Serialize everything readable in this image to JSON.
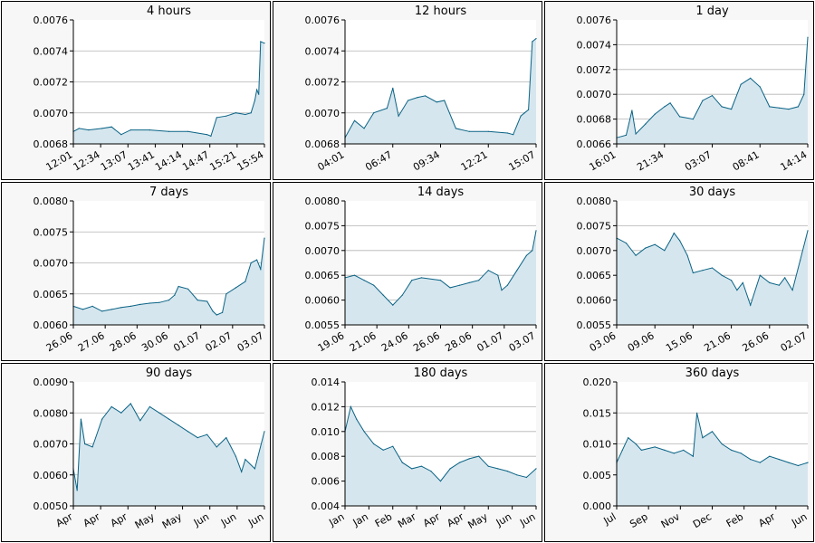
{
  "colors": {
    "line": "#0a6385",
    "fill": "#d6e6ee",
    "grid": "#b3b3b3",
    "axis": "#000000",
    "plot_bg": "#ffffff",
    "panel_bg": "#f7f7f7"
  },
  "chart_data": [
    {
      "type": "area",
      "title": "4 hours",
      "ylim": [
        0.0068,
        0.0076
      ],
      "yticks": [
        "0.0068",
        "0.0070",
        "0.0072",
        "0.0074",
        "0.0076"
      ],
      "xticks": [
        "12:01",
        "12:34",
        "13:07",
        "13:41",
        "14:14",
        "14:47",
        "15:21",
        "15:54"
      ],
      "x": [
        0,
        0.03,
        0.08,
        0.15,
        0.2,
        0.25,
        0.3,
        0.4,
        0.5,
        0.6,
        0.7,
        0.72,
        0.75,
        0.8,
        0.85,
        0.9,
        0.93,
        0.95,
        0.96,
        0.97,
        0.98,
        1
      ],
      "y": [
        0.00688,
        0.0069,
        0.00689,
        0.0069,
        0.00691,
        0.00686,
        0.00689,
        0.00689,
        0.00688,
        0.00688,
        0.00686,
        0.00685,
        0.00697,
        0.00698,
        0.007,
        0.00699,
        0.007,
        0.00708,
        0.00715,
        0.00712,
        0.00746,
        0.00745
      ]
    },
    {
      "type": "area",
      "title": "12 hours",
      "ylim": [
        0.0068,
        0.0076
      ],
      "yticks": [
        "0.0068",
        "0.0070",
        "0.0072",
        "0.0074",
        "0.0076"
      ],
      "xticks": [
        "04:01",
        "06:47",
        "09:34",
        "12:21",
        "15:07"
      ],
      "x": [
        0,
        0.05,
        0.1,
        0.15,
        0.22,
        0.25,
        0.28,
        0.33,
        0.38,
        0.42,
        0.48,
        0.52,
        0.58,
        0.65,
        0.75,
        0.85,
        0.88,
        0.92,
        0.94,
        0.96,
        0.98,
        1
      ],
      "y": [
        0.00684,
        0.00695,
        0.0069,
        0.007,
        0.00703,
        0.00716,
        0.00698,
        0.00708,
        0.0071,
        0.00711,
        0.00707,
        0.00708,
        0.0069,
        0.00688,
        0.00688,
        0.00687,
        0.00686,
        0.00698,
        0.007,
        0.00702,
        0.00746,
        0.00748
      ]
    },
    {
      "type": "area",
      "title": "1 day",
      "ylim": [
        0.0066,
        0.0076
      ],
      "yticks": [
        "0.0066",
        "0.0068",
        "0.0070",
        "0.0072",
        "0.0074",
        "0.0076"
      ],
      "xticks": [
        "16:01",
        "21:34",
        "03:07",
        "08:41",
        "14:14"
      ],
      "x": [
        0,
        0.05,
        0.08,
        0.1,
        0.15,
        0.2,
        0.25,
        0.28,
        0.33,
        0.4,
        0.45,
        0.5,
        0.55,
        0.6,
        0.65,
        0.7,
        0.75,
        0.8,
        0.85,
        0.9,
        0.95,
        0.98,
        1
      ],
      "y": [
        0.00665,
        0.00667,
        0.00687,
        0.00668,
        0.00676,
        0.00684,
        0.0069,
        0.00693,
        0.00682,
        0.0068,
        0.00695,
        0.00699,
        0.0069,
        0.00688,
        0.00708,
        0.00713,
        0.00706,
        0.0069,
        0.00689,
        0.00688,
        0.0069,
        0.007,
        0.00746
      ]
    },
    {
      "type": "area",
      "title": "7 days",
      "ylim": [
        0.006,
        0.008
      ],
      "yticks": [
        "0.0060",
        "0.0065",
        "0.0070",
        "0.0075",
        "0.0080"
      ],
      "xticks": [
        "26.06",
        "27.06",
        "28.06",
        "30.06",
        "01.07",
        "02.07",
        "03.07"
      ],
      "x": [
        0,
        0.05,
        0.1,
        0.15,
        0.2,
        0.25,
        0.3,
        0.35,
        0.4,
        0.45,
        0.5,
        0.53,
        0.55,
        0.6,
        0.65,
        0.7,
        0.73,
        0.75,
        0.78,
        0.8,
        0.85,
        0.9,
        0.93,
        0.96,
        0.98,
        1
      ],
      "y": [
        0.0063,
        0.00625,
        0.0063,
        0.00622,
        0.00625,
        0.00628,
        0.0063,
        0.00633,
        0.00635,
        0.00636,
        0.0064,
        0.00648,
        0.00662,
        0.00658,
        0.0064,
        0.00638,
        0.00622,
        0.00616,
        0.0062,
        0.0065,
        0.0066,
        0.0067,
        0.007,
        0.00705,
        0.0069,
        0.0074
      ]
    },
    {
      "type": "area",
      "title": "14 days",
      "ylim": [
        0.0055,
        0.008
      ],
      "yticks": [
        "0.0055",
        "0.0060",
        "0.0065",
        "0.0070",
        "0.0075",
        "0.0080"
      ],
      "xticks": [
        "19.06",
        "21.06",
        "24.06",
        "26.06",
        "28.06",
        "01.07",
        "03.07"
      ],
      "x": [
        0,
        0.05,
        0.1,
        0.15,
        0.2,
        0.25,
        0.3,
        0.35,
        0.4,
        0.5,
        0.55,
        0.6,
        0.65,
        0.7,
        0.75,
        0.8,
        0.82,
        0.85,
        0.9,
        0.95,
        0.98,
        1
      ],
      "y": [
        0.00645,
        0.0065,
        0.0064,
        0.0063,
        0.0061,
        0.0059,
        0.0061,
        0.0064,
        0.00645,
        0.0064,
        0.00625,
        0.0063,
        0.00635,
        0.0064,
        0.0066,
        0.0065,
        0.0062,
        0.0063,
        0.0066,
        0.0069,
        0.007,
        0.0074
      ]
    },
    {
      "type": "area",
      "title": "30 days",
      "ylim": [
        0.0055,
        0.008
      ],
      "yticks": [
        "0.0055",
        "0.0060",
        "0.0065",
        "0.0070",
        "0.0075",
        "0.0080"
      ],
      "xticks": [
        "03.06",
        "09.06",
        "15.06",
        "21.06",
        "26.06",
        "02.07"
      ],
      "x": [
        0,
        0.05,
        0.1,
        0.15,
        0.2,
        0.25,
        0.28,
        0.3,
        0.33,
        0.37,
        0.4,
        0.45,
        0.5,
        0.55,
        0.6,
        0.63,
        0.66,
        0.7,
        0.75,
        0.8,
        0.85,
        0.88,
        0.92,
        0.96,
        1
      ],
      "y": [
        0.00725,
        0.00715,
        0.0069,
        0.00705,
        0.00712,
        0.007,
        0.0072,
        0.00735,
        0.0072,
        0.0069,
        0.00655,
        0.0066,
        0.00665,
        0.0065,
        0.0064,
        0.0062,
        0.00635,
        0.0059,
        0.0065,
        0.00635,
        0.0063,
        0.00645,
        0.0062,
        0.0068,
        0.0074
      ]
    },
    {
      "type": "area",
      "title": "90 days",
      "ylim": [
        0.005,
        0.009
      ],
      "yticks": [
        "0.0050",
        "0.0060",
        "0.0070",
        "0.0080",
        "0.0090"
      ],
      "xticks": [
        "Apr",
        "Apr",
        "Apr",
        "May",
        "May",
        "Jun",
        "Jun",
        "Jun"
      ],
      "x": [
        0,
        0.02,
        0.04,
        0.06,
        0.1,
        0.15,
        0.2,
        0.25,
        0.3,
        0.35,
        0.4,
        0.45,
        0.5,
        0.55,
        0.6,
        0.65,
        0.7,
        0.75,
        0.8,
        0.85,
        0.88,
        0.9,
        0.95,
        1
      ],
      "y": [
        0.0062,
        0.0055,
        0.0078,
        0.007,
        0.0069,
        0.0078,
        0.0082,
        0.008,
        0.0083,
        0.00775,
        0.0082,
        0.008,
        0.0078,
        0.0076,
        0.0074,
        0.0072,
        0.0073,
        0.0069,
        0.0072,
        0.0066,
        0.0061,
        0.0065,
        0.0062,
        0.0074
      ]
    },
    {
      "type": "area",
      "title": "180 days",
      "ylim": [
        0.004,
        0.014
      ],
      "yticks": [
        "0.004",
        "0.006",
        "0.008",
        "0.010",
        "0.012",
        "0.014"
      ],
      "xticks": [
        "Jan",
        "Jan",
        "Feb",
        "Mar",
        "Apr",
        "Apr",
        "May",
        "Jun",
        "Jun"
      ],
      "x": [
        0,
        0.03,
        0.06,
        0.1,
        0.15,
        0.2,
        0.25,
        0.3,
        0.35,
        0.4,
        0.45,
        0.5,
        0.55,
        0.6,
        0.65,
        0.7,
        0.75,
        0.8,
        0.85,
        0.9,
        0.95,
        1
      ],
      "y": [
        0.01,
        0.012,
        0.011,
        0.01,
        0.009,
        0.0085,
        0.0088,
        0.0075,
        0.007,
        0.0072,
        0.0068,
        0.006,
        0.007,
        0.0075,
        0.0078,
        0.008,
        0.0072,
        0.007,
        0.0068,
        0.0065,
        0.0063,
        0.007
      ]
    },
    {
      "type": "area",
      "title": "360 days",
      "ylim": [
        0,
        0.02
      ],
      "yticks": [
        "0.000",
        "0.005",
        "0.010",
        "0.015",
        "0.020"
      ],
      "xticks": [
        "Jul",
        "Sep",
        "Nov",
        "Dec",
        "Feb",
        "Apr",
        "Jun"
      ],
      "x": [
        0,
        0.03,
        0.06,
        0.1,
        0.13,
        0.2,
        0.25,
        0.3,
        0.35,
        0.4,
        0.42,
        0.45,
        0.5,
        0.55,
        0.6,
        0.65,
        0.7,
        0.75,
        0.8,
        0.85,
        0.9,
        0.95,
        1
      ],
      "y": [
        0.007,
        0.009,
        0.011,
        0.01,
        0.009,
        0.0095,
        0.009,
        0.0085,
        0.009,
        0.008,
        0.015,
        0.011,
        0.012,
        0.01,
        0.009,
        0.0085,
        0.0075,
        0.007,
        0.008,
        0.0075,
        0.007,
        0.0065,
        0.007
      ]
    }
  ]
}
